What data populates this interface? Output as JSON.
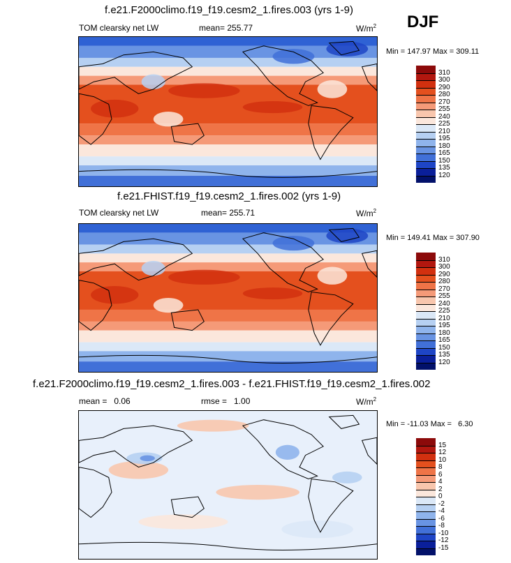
{
  "season": "DJF",
  "units": "W/m",
  "units_sup": "2",
  "chart_data": [
    {
      "type": "heatmap",
      "title": "f.e21.F2000climo.f19_f19.cesm2_1.fires.003 (yrs 1-9)",
      "variable": "TOM clearsky net LW",
      "mean_label": "mean= 255.77",
      "min": 147.97,
      "max": 309.11,
      "minmax_label": "Min = 147.97 Max = 309.11",
      "colorbar_levels": [
        "310",
        "300",
        "290",
        "280",
        "270",
        "255",
        "240",
        "225",
        "210",
        "195",
        "180",
        "165",
        "150",
        "135",
        "120"
      ],
      "colorbar_colors": [
        "#8c0a0a",
        "#b2170f",
        "#d2300f",
        "#e4501e",
        "#ef7447",
        "#f59a78",
        "#f8c6ad",
        "#fbe7dc",
        "#dbe8f7",
        "#b6d0f2",
        "#8fb4ec",
        "#6994e3",
        "#4170d8",
        "#1e45c6",
        "#0a1f9a",
        "#02116a"
      ]
    },
    {
      "type": "heatmap",
      "title": "f.e21.FHIST.f19_f19.cesm2_1.fires.002 (yrs 1-9)",
      "variable": "TOM clearsky net LW",
      "mean_label": "mean= 255.71",
      "min": 149.41,
      "max": 307.9,
      "minmax_label": "Min = 149.41 Max = 307.90",
      "colorbar_levels": [
        "310",
        "300",
        "290",
        "280",
        "270",
        "255",
        "240",
        "225",
        "210",
        "195",
        "180",
        "165",
        "150",
        "135",
        "120"
      ],
      "colorbar_colors": [
        "#8c0a0a",
        "#b2170f",
        "#d2300f",
        "#e4501e",
        "#ef7447",
        "#f59a78",
        "#f8c6ad",
        "#fbe7dc",
        "#dbe8f7",
        "#b6d0f2",
        "#8fb4ec",
        "#6994e3",
        "#4170d8",
        "#1e45c6",
        "#0a1f9a",
        "#02116a"
      ]
    },
    {
      "type": "heatmap",
      "title": "f.e21.F2000climo.f19_f19.cesm2_1.fires.003 - f.e21.FHIST.f19_f19.cesm2_1.fires.002",
      "mean_label": "mean =   0.06",
      "rmse_label": "rmse =   1.00",
      "min": -11.03,
      "max": 6.3,
      "minmax_label": "Min = -11.03 Max =   6.30",
      "colorbar_levels": [
        "15",
        "12",
        "10",
        "8",
        "6",
        "4",
        "2",
        "0",
        "-2",
        "-4",
        "-6",
        "-8",
        "-10",
        "-12",
        "-15"
      ],
      "colorbar_colors": [
        "#8c0a0a",
        "#b2170f",
        "#d2300f",
        "#e4501e",
        "#ef7447",
        "#f59a78",
        "#f8c6ad",
        "#fbe7dc",
        "#dbe8f7",
        "#b6d0f2",
        "#8fb4ec",
        "#6994e3",
        "#4170d8",
        "#1e45c6",
        "#0a1f9a",
        "#02116a"
      ]
    }
  ]
}
